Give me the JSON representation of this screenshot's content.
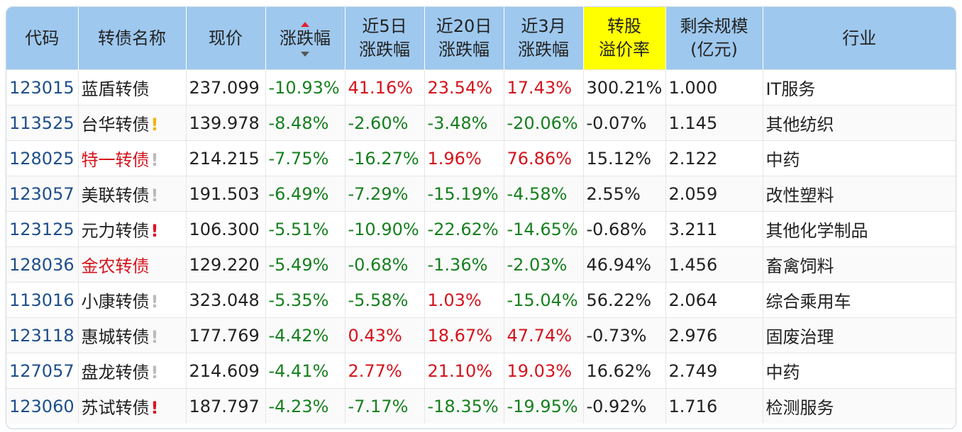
{
  "headers": {
    "code": "代码",
    "name": "转债名称",
    "price": "现价",
    "change": "涨跌幅",
    "d5_line1": "近5日",
    "d5_line2": "涨跌幅",
    "d20_line1": "近20日",
    "d20_line2": "涨跌幅",
    "m3_line1": "近3月",
    "m3_line2": "涨跌幅",
    "premium_line1": "转股",
    "premium_line2": "溢价率",
    "scale_line1": "剩余规模",
    "scale_line2": "(亿元)",
    "industry": "行业"
  },
  "colors": {
    "header_bg": "#9ec8ee",
    "premium_header_bg": "#ffff00",
    "code_blue": "#1f4f8b",
    "negative_green": "#17801f",
    "positive_red": "#d4141c",
    "mark_yellow": "#f2b400",
    "mark_gray": "#bbbbbb",
    "mark_red": "#e01020"
  },
  "rows": [
    {
      "code": "123015",
      "name": "蓝盾转债",
      "mark": "",
      "name_red": false,
      "price": "237.099",
      "change": "-10.93%",
      "d5": "41.16%",
      "d20": "23.54%",
      "m3": "17.43%",
      "premium": "300.21%",
      "scale": "1.000",
      "industry": "IT服务"
    },
    {
      "code": "113525",
      "name": "台华转债",
      "mark": "!",
      "mark_color": "yellow",
      "name_red": false,
      "price": "139.978",
      "change": "-8.48%",
      "d5": "-2.60%",
      "d20": "-3.48%",
      "m3": "-20.06%",
      "premium": "-0.07%",
      "scale": "1.145",
      "industry": "其他纺织"
    },
    {
      "code": "128025",
      "name": "特一转债",
      "mark": "!",
      "mark_color": "gray",
      "name_red": true,
      "price": "214.215",
      "change": "-7.75%",
      "d5": "-16.27%",
      "d20": "1.96%",
      "m3": "76.86%",
      "premium": "15.12%",
      "scale": "2.122",
      "industry": "中药"
    },
    {
      "code": "123057",
      "name": "美联转债",
      "mark": "!",
      "mark_color": "gray",
      "name_red": false,
      "price": "191.503",
      "change": "-6.49%",
      "d5": "-7.29%",
      "d20": "-15.19%",
      "m3": "-4.58%",
      "premium": "2.55%",
      "scale": "2.059",
      "industry": "改性塑料"
    },
    {
      "code": "123125",
      "name": "元力转债",
      "mark": "!",
      "mark_color": "red",
      "name_red": false,
      "price": "106.300",
      "change": "-5.51%",
      "d5": "-10.90%",
      "d20": "-22.62%",
      "m3": "-14.65%",
      "premium": "-0.68%",
      "scale": "3.211",
      "industry": "其他化学制品"
    },
    {
      "code": "128036",
      "name": "金农转债",
      "mark": "",
      "name_red": true,
      "price": "129.220",
      "change": "-5.49%",
      "d5": "-0.68%",
      "d20": "-1.36%",
      "m3": "-2.03%",
      "premium": "46.94%",
      "scale": "1.456",
      "industry": "畜禽饲料"
    },
    {
      "code": "113016",
      "name": "小康转债",
      "mark": "!",
      "mark_color": "gray",
      "name_red": false,
      "price": "323.048",
      "change": "-5.35%",
      "d5": "-5.58%",
      "d20": "1.03%",
      "m3": "-15.04%",
      "premium": "56.22%",
      "scale": "2.064",
      "industry": "综合乘用车"
    },
    {
      "code": "123118",
      "name": "惠城转债",
      "mark": "!",
      "mark_color": "gray",
      "name_red": false,
      "price": "177.769",
      "change": "-4.42%",
      "d5": "0.43%",
      "d20": "18.67%",
      "m3": "47.74%",
      "premium": "-0.73%",
      "scale": "2.976",
      "industry": "固废治理"
    },
    {
      "code": "127057",
      "name": "盘龙转债",
      "mark": "!",
      "mark_color": "gray",
      "name_red": false,
      "price": "214.609",
      "change": "-4.41%",
      "d5": "2.77%",
      "d20": "21.10%",
      "m3": "19.03%",
      "premium": "16.62%",
      "scale": "2.749",
      "industry": "中药"
    },
    {
      "code": "123060",
      "name": "苏试转债",
      "mark": "!",
      "mark_color": "red",
      "name_red": false,
      "price": "187.797",
      "change": "-4.23%",
      "d5": "-7.17%",
      "d20": "-18.35%",
      "m3": "-19.95%",
      "premium": "-0.92%",
      "scale": "1.716",
      "industry": "检测服务"
    }
  ]
}
